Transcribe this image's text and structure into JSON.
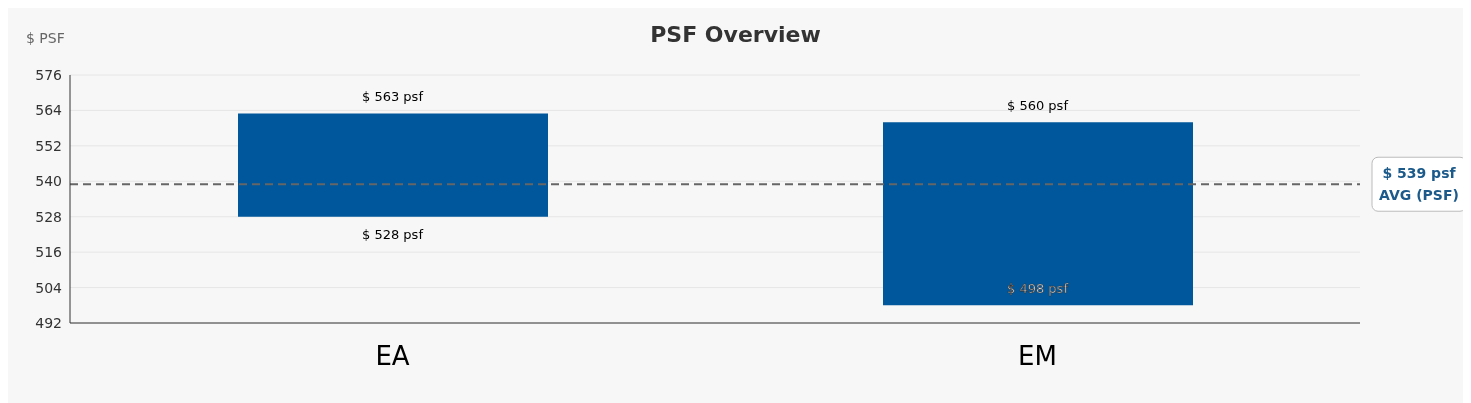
{
  "chart_data": {
    "type": "bar",
    "title": "PSF Overview",
    "ylabel": "$ PSF",
    "categories": [
      "EA",
      "EM"
    ],
    "base": [
      528,
      498
    ],
    "values": [
      35,
      62
    ],
    "color": "#01579b",
    "ylim": [
      492,
      576
    ],
    "yticks": [
      492,
      504,
      516,
      528,
      540,
      552,
      564,
      576
    ],
    "grid": "y",
    "ref_lines": [
      {
        "axis": "y",
        "value": 539,
        "label": "$ 539 psf\nAVG (PSF)",
        "color": "#666666",
        "line_style": "dashed"
      }
    ],
    "annotations": [
      {
        "text": "$ 563 psf",
        "x": "EA",
        "y": 563
      },
      {
        "text": "$ 528 psf",
        "x": "EA",
        "y": 528
      },
      {
        "text": "$ 560 psf",
        "x": "EM",
        "y": 560
      },
      {
        "text": "$ 498 psf",
        "x": "EM",
        "y": 498
      }
    ]
  }
}
